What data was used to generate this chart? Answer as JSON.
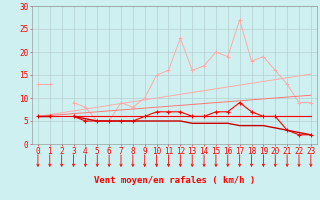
{
  "title": "",
  "xlabel": "Vent moyen/en rafales ( km/h )",
  "x": [
    0,
    1,
    2,
    3,
    4,
    5,
    6,
    7,
    8,
    9,
    10,
    11,
    12,
    13,
    14,
    15,
    16,
    17,
    18,
    19,
    20,
    21,
    22,
    23
  ],
  "line_rafales": [
    13,
    13,
    null,
    9,
    8,
    5,
    5,
    9,
    8,
    10,
    15,
    16,
    23,
    16,
    17,
    20,
    19,
    27,
    18,
    19,
    16,
    13,
    9,
    9
  ],
  "line_moyen": [
    6,
    6,
    null,
    6,
    5,
    5,
    5,
    5,
    5,
    6,
    7,
    7,
    7,
    6,
    6,
    7,
    7,
    9,
    7,
    6,
    6,
    3,
    2,
    2
  ],
  "line_trend1": [
    6,
    6.4,
    6.8,
    7.2,
    7.6,
    8.0,
    8.4,
    8.8,
    9.2,
    9.6,
    10.0,
    10.4,
    10.8,
    11.2,
    11.6,
    12.0,
    12.4,
    12.8,
    13.2,
    13.6,
    14.0,
    14.4,
    14.8,
    15.2
  ],
  "line_trend2": [
    6,
    6.2,
    6.4,
    6.6,
    6.8,
    7.0,
    7.2,
    7.4,
    7.6,
    7.8,
    8.0,
    8.2,
    8.4,
    8.6,
    8.8,
    9.0,
    9.2,
    9.4,
    9.6,
    9.8,
    10.0,
    10.2,
    10.4,
    10.6
  ],
  "line_flat": [
    6,
    6,
    6,
    6,
    6,
    6,
    6,
    6,
    6,
    6,
    6,
    6,
    6,
    6,
    6,
    6,
    6,
    6,
    6,
    6,
    6,
    6,
    6,
    6
  ],
  "line_dark": [
    6,
    6,
    null,
    6,
    5.5,
    5,
    5,
    5,
    5,
    5,
    5,
    5,
    5,
    4.5,
    4.5,
    4.5,
    4.5,
    4,
    4,
    4,
    3.5,
    3,
    2.5,
    2
  ],
  "arrows_x": [
    0,
    1,
    2,
    3,
    4,
    5,
    6,
    7,
    8,
    9,
    10,
    11,
    12,
    13,
    14,
    15,
    16,
    17,
    18,
    19,
    20,
    21,
    22,
    23
  ],
  "background_color": "#cff0f0",
  "grid_color": "#b0c8c8",
  "color_light_pink": "#ffaaaa",
  "color_pink": "#ff7777",
  "color_red": "#ff0000",
  "color_dark_red": "#cc0000",
  "ylim": [
    0,
    30
  ],
  "yticks": [
    0,
    5,
    10,
    15,
    20,
    25,
    30
  ],
  "xlim": [
    -0.5,
    23.5
  ],
  "xlabel_fontsize": 6.5,
  "tick_fontsize": 5.5
}
